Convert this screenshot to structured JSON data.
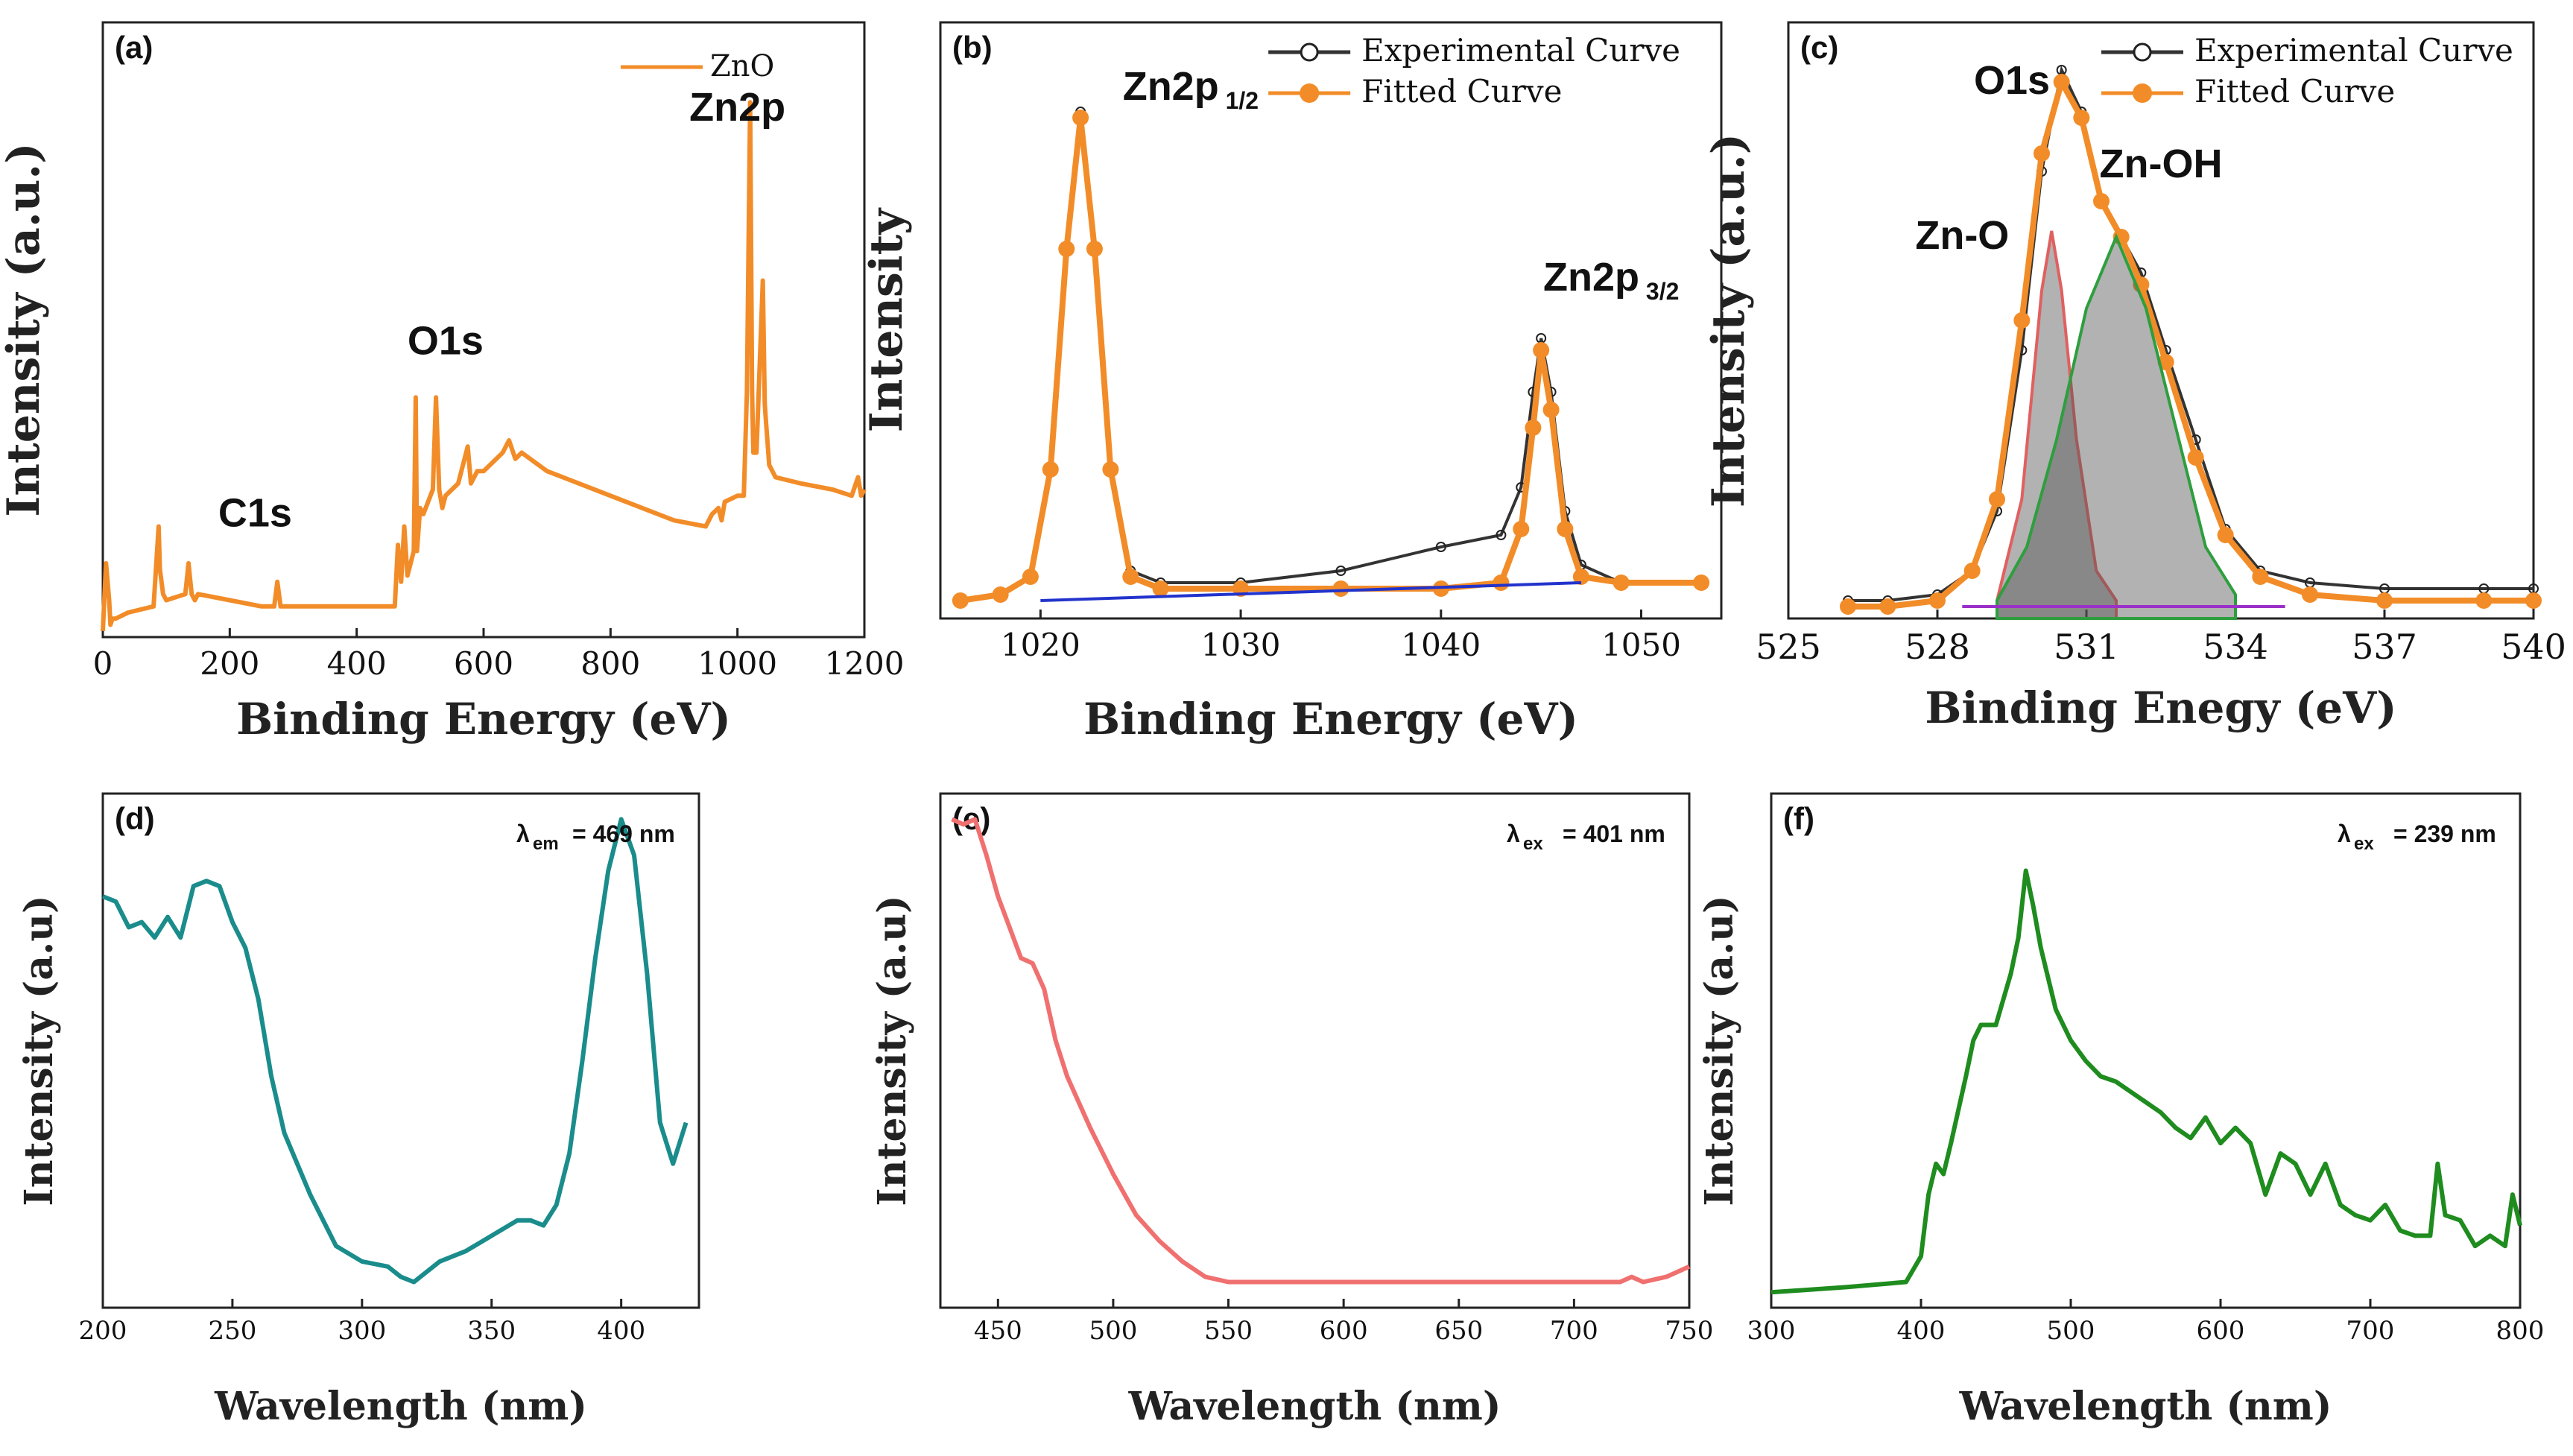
{
  "chart_data": [
    {
      "panel": "(a)",
      "type": "line",
      "xlabel": "Binding Energy (eV)",
      "ylabel": "Intensity (a.u.)",
      "xlim": [
        0,
        1200
      ],
      "ylim": [
        0,
        100
      ],
      "xticks": [
        "0",
        "200",
        "400",
        "600",
        "800",
        "1000",
        "1200"
      ],
      "legend": [
        "ZnO"
      ],
      "annotations": [
        {
          "text": "C1s",
          "x": 240,
          "y": 18
        },
        {
          "text": "O1s",
          "x": 540,
          "y": 46
        },
        {
          "text": "Zn2p",
          "x": 1000,
          "y": 84
        }
      ],
      "series": [
        {
          "name": "ZnO",
          "color": "#F28C28",
          "x": [
            0,
            5,
            10,
            12,
            15,
            20,
            40,
            80,
            88,
            90,
            95,
            100,
            130,
            135,
            140,
            145,
            150,
            200,
            250,
            270,
            275,
            280,
            285,
            300,
            350,
            400,
            440,
            460,
            465,
            470,
            475,
            480,
            490,
            493,
            495,
            500,
            505,
            520,
            525,
            530,
            535,
            540,
            560,
            575,
            580,
            590,
            600,
            630,
            640,
            650,
            660,
            700,
            750,
            800,
            850,
            900,
            950,
            960,
            970,
            975,
            980,
            1000,
            1010,
            1015,
            1020,
            1023,
            1025,
            1030,
            1040,
            1043,
            1045,
            1050,
            1060,
            1100,
            1150,
            1180,
            1190,
            1195,
            1200
          ],
          "y": [
            1,
            12,
            6,
            2,
            3,
            3,
            4,
            5,
            18,
            11,
            7,
            6,
            7,
            12,
            7,
            6,
            7,
            6,
            5,
            5,
            9,
            5,
            5,
            5,
            5,
            5,
            5,
            5,
            15,
            9,
            18,
            10,
            14,
            39,
            14,
            21,
            20,
            24,
            39,
            24,
            21,
            23,
            25,
            31,
            25,
            27,
            27,
            30,
            32,
            29,
            30,
            27,
            25,
            23,
            21,
            19,
            18,
            20,
            21,
            19,
            22,
            23,
            23,
            40,
            87,
            40,
            30,
            30,
            58,
            38,
            35,
            28,
            26,
            25,
            24,
            23,
            26,
            23,
            24
          ]
        }
      ]
    },
    {
      "panel": "(b)",
      "type": "line",
      "xlabel": "Binding Energy (eV)",
      "ylabel": "Intensity",
      "xlim": [
        1015,
        1054
      ],
      "ylim": [
        0,
        100
      ],
      "xticks": [
        "1020",
        "1030",
        "1040",
        "1050"
      ],
      "legend": [
        "Experimental Curve",
        "Fitted Curve"
      ],
      "annotations": [
        {
          "text": "Zn2p",
          "sub": "1/2",
          "x": 1027.5,
          "y": 87
        },
        {
          "text": "Zn2p",
          "sub": "3/2",
          "x": 1048.5,
          "y": 55
        }
      ],
      "series": [
        {
          "name": "Experimental Curve",
          "color": "#333333",
          "x": [
            1016,
            1018,
            1019.5,
            1020.5,
            1021.3,
            1022,
            1022.7,
            1023.5,
            1024.5,
            1026,
            1030,
            1035,
            1040,
            1043,
            1044,
            1044.6,
            1045,
            1045.5,
            1046.2,
            1047,
            1049,
            1053
          ],
          "y": [
            3,
            4,
            7,
            25,
            62,
            85,
            62,
            25,
            8,
            6,
            6,
            8,
            12,
            14,
            22,
            38,
            47,
            38,
            18,
            9,
            6,
            6
          ]
        },
        {
          "name": "Fitted Curve",
          "color": "#F28C28",
          "x": [
            1016,
            1018,
            1019.5,
            1020.5,
            1021.3,
            1022,
            1022.7,
            1023.5,
            1024.5,
            1026,
            1030,
            1035,
            1040,
            1043,
            1044,
            1044.6,
            1045,
            1045.5,
            1046.2,
            1047,
            1049,
            1053
          ],
          "y": [
            3,
            4,
            7,
            25,
            62,
            84,
            62,
            25,
            7,
            5,
            5,
            5,
            5,
            6,
            15,
            32,
            45,
            35,
            15,
            7,
            6,
            6
          ]
        }
      ]
    },
    {
      "panel": "(c)",
      "type": "line",
      "xlabel": "Binding Enegy (eV)",
      "ylabel": "Intensity (a.u.)",
      "xlim": [
        525,
        540
      ],
      "ylim": [
        0,
        100
      ],
      "xticks": [
        "525",
        "528",
        "531",
        "534",
        "537",
        "540"
      ],
      "legend": [
        "Experimental Curve",
        "Fitted Curve"
      ],
      "annotations": [
        {
          "text": "O1s",
          "x": 529.5,
          "y": 88
        },
        {
          "text": "Zn-OH",
          "x": 532.5,
          "y": 74
        },
        {
          "text": "Zn-O",
          "x": 528.5,
          "y": 62
        }
      ],
      "series": [
        {
          "name": "Experimental Curve",
          "color": "#333333",
          "x": [
            526.2,
            527,
            528,
            528.7,
            529.2,
            529.7,
            530.1,
            530.5,
            530.9,
            531.3,
            531.7,
            532.1,
            532.6,
            533.2,
            533.8,
            534.5,
            535.5,
            537,
            539,
            540
          ],
          "y": [
            3,
            3,
            4,
            8,
            18,
            45,
            75,
            92,
            85,
            70,
            64,
            58,
            45,
            30,
            15,
            8,
            6,
            5,
            5,
            5
          ]
        },
        {
          "name": "Fitted Curve",
          "color": "#F28C28",
          "x": [
            526.2,
            527,
            528,
            528.7,
            529.2,
            529.7,
            530.1,
            530.5,
            530.9,
            531.3,
            531.7,
            532.1,
            532.6,
            533.2,
            533.8,
            534.5,
            535.5,
            537,
            539,
            540
          ],
          "y": [
            2,
            2,
            3,
            8,
            20,
            50,
            78,
            90,
            84,
            70,
            64,
            56,
            43,
            27,
            14,
            7,
            4,
            3,
            3,
            3
          ]
        },
        {
          "name": "Zn-O",
          "color": "#E06060",
          "x": [
            529.2,
            529.7,
            530.1,
            530.3,
            530.5,
            530.8,
            531.2,
            531.6
          ],
          "y": [
            3,
            20,
            55,
            65,
            55,
            30,
            8,
            3
          ]
        },
        {
          "name": "Zn-OH",
          "color": "#2E9E3E",
          "x": [
            529.2,
            529.8,
            530.4,
            531,
            531.6,
            532.2,
            532.8,
            533.4,
            534
          ],
          "y": [
            3,
            12,
            30,
            52,
            64,
            52,
            32,
            12,
            4
          ]
        }
      ]
    },
    {
      "panel": "(d)",
      "type": "line",
      "xlabel": "Wavelength (nm)",
      "ylabel": "Intensity (a.u)",
      "xlim": [
        200,
        430
      ],
      "ylim": [
        0,
        100
      ],
      "xticks": [
        "200",
        "250",
        "300",
        "350",
        "400"
      ],
      "annotation_text": "em = 469 nm",
      "annotation_symbol": "λ",
      "series": [
        {
          "name": "(d)",
          "color": "#1A8C8C",
          "x": [
            200,
            205,
            210,
            215,
            220,
            225,
            230,
            235,
            240,
            245,
            250,
            255,
            260,
            265,
            270,
            280,
            290,
            300,
            310,
            315,
            320,
            325,
            330,
            340,
            350,
            360,
            365,
            370,
            375,
            380,
            385,
            390,
            395,
            400,
            405,
            410,
            415,
            420,
            425
          ],
          "y": [
            80,
            79,
            74,
            75,
            72,
            76,
            72,
            82,
            83,
            82,
            75,
            70,
            60,
            45,
            34,
            22,
            12,
            9,
            8,
            6,
            5,
            7,
            9,
            11,
            14,
            17,
            17,
            16,
            20,
            30,
            48,
            68,
            85,
            95,
            88,
            65,
            36,
            28,
            36
          ]
        }
      ]
    },
    {
      "panel": "(e)",
      "type": "line",
      "xlabel": "Wavelength (nm)",
      "ylabel": "Intensity (a.u)",
      "xlim": [
        425,
        750
      ],
      "ylim": [
        0,
        100
      ],
      "xticks": [
        "450",
        "500",
        "550",
        "600",
        "650",
        "700",
        "750"
      ],
      "annotation_text": "ex = 401 nm",
      "annotation_symbol": "λ",
      "series": [
        {
          "name": "(e)",
          "color": "#F07070",
          "x": [
            430,
            435,
            440,
            445,
            450,
            455,
            460,
            465,
            470,
            475,
            480,
            490,
            500,
            510,
            520,
            530,
            540,
            550,
            575,
            600,
            625,
            650,
            675,
            700,
            720,
            725,
            730,
            740,
            745,
            750
          ],
          "y": [
            95,
            94,
            95,
            88,
            80,
            74,
            68,
            67,
            62,
            52,
            45,
            35,
            26,
            18,
            13,
            9,
            6,
            5,
            5,
            5,
            5,
            5,
            5,
            5,
            5,
            6,
            5,
            6,
            7,
            8
          ]
        }
      ]
    },
    {
      "panel": "(f)",
      "type": "line",
      "xlabel": "Wavelength (nm)",
      "ylabel": "Intensity (a.u)",
      "xlim": [
        300,
        800
      ],
      "ylim": [
        0,
        100
      ],
      "xticks": [
        "300",
        "400",
        "500",
        "600",
        "700",
        "800"
      ],
      "annotation_text": "ex = 239 nm",
      "annotation_symbol": "λ",
      "series": [
        {
          "name": "(f)",
          "color": "#1E8C1E",
          "x": [
            300,
            350,
            390,
            400,
            405,
            410,
            415,
            420,
            430,
            435,
            440,
            450,
            460,
            465,
            470,
            475,
            480,
            490,
            500,
            510,
            520,
            530,
            540,
            550,
            560,
            570,
            580,
            590,
            600,
            610,
            620,
            630,
            640,
            650,
            660,
            670,
            680,
            690,
            700,
            710,
            720,
            730,
            740,
            745,
            750,
            760,
            770,
            780,
            790,
            795,
            800
          ],
          "y": [
            3,
            4,
            5,
            10,
            22,
            28,
            26,
            32,
            45,
            52,
            55,
            55,
            65,
            72,
            85,
            78,
            70,
            58,
            52,
            48,
            45,
            44,
            42,
            40,
            38,
            35,
            33,
            37,
            32,
            35,
            32,
            22,
            30,
            28,
            22,
            28,
            20,
            18,
            17,
            20,
            15,
            14,
            14,
            28,
            18,
            17,
            12,
            14,
            12,
            22,
            16
          ]
        }
      ]
    }
  ]
}
